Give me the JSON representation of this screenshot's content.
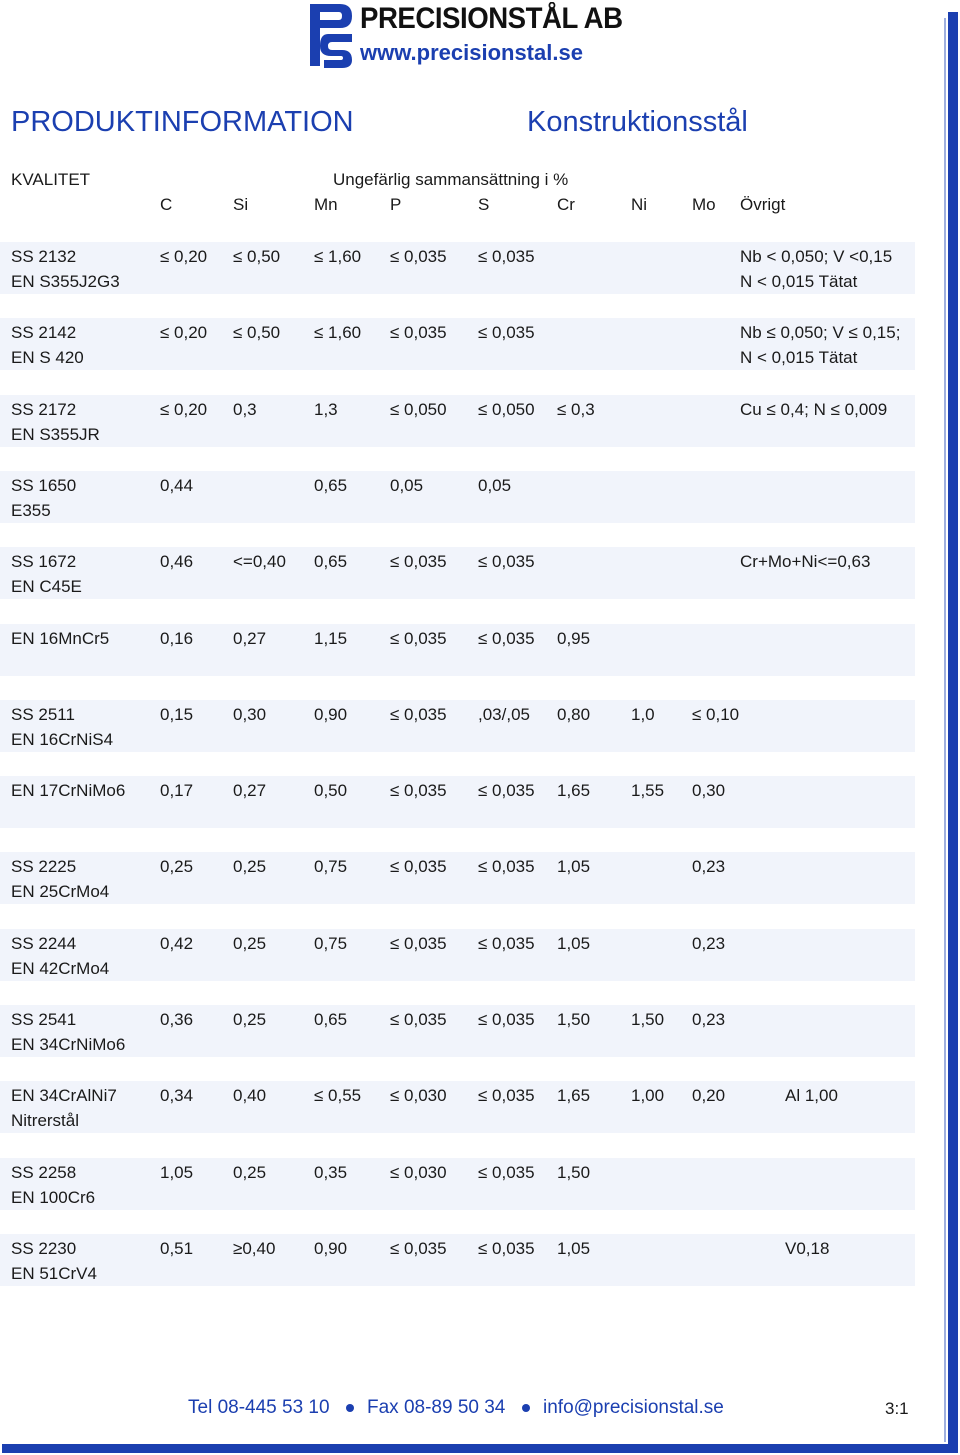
{
  "header": {
    "company": "PRECISIONSTÅL AB",
    "website": "www.precisionstal.se",
    "title_left": "PRODUKTINFORMATION",
    "title_right": "Konstruktionsstål"
  },
  "table": {
    "quality_label": "KVALITET",
    "composition_label": "Ungefärlig sammansättning i %",
    "columns": [
      "C",
      "Si",
      "Mn",
      "P",
      "S",
      "Cr",
      "Ni",
      "Mo",
      "Övrigt"
    ],
    "rows": [
      {
        "g1": "SS 2132",
        "g2": "EN  S355J2G3",
        "c": "≤ 0,20",
        "si": "≤ 0,50",
        "mn": "≤ 1,60",
        "p": "≤ 0,035",
        "s": "≤ 0,035",
        "cr": "",
        "ni": "",
        "mo": "",
        "o1": "Nb < 0,050; V <0,15",
        "o2": "N < 0,015   Tätat"
      },
      {
        "g1": "SS 2142",
        "g2": "EN  S 420",
        "c": "≤ 0,20",
        "si": "≤ 0,50",
        "mn": "≤ 1,60",
        "p": "≤ 0,035",
        "s": "≤ 0,035",
        "cr": "",
        "ni": "",
        "mo": "",
        "o1": "Nb ≤ 0,050; V ≤ 0,15;",
        "o2": "N < 0,015   Tätat"
      },
      {
        "g1": "SS 2172",
        "g2": "EN   S355JR",
        "c": "≤ 0,20",
        "si": "0,3",
        "mn": "1,3",
        "p": "≤ 0,050",
        "s": "≤ 0,050",
        "cr": "≤ 0,3",
        "ni": "",
        "mo": "",
        "o1": "Cu ≤ 0,4; N ≤ 0,009",
        "o2": ""
      },
      {
        "g1": "SS 1650",
        "g2": "E355",
        "c": "0,44",
        "si": "",
        "mn": "0,65",
        "p": "0,05",
        "s": "0,05",
        "cr": "",
        "ni": "",
        "mo": "",
        "o1": "",
        "o2": ""
      },
      {
        "g1": "SS 1672",
        "g2": "EN  C45E",
        "c": "0,46",
        "si": "<=0,40",
        "mn": "0,65",
        "p": "≤ 0,035",
        "s": "≤ 0,035",
        "cr": "",
        "ni": "",
        "mo": "",
        "o1": "Cr+Mo+Ni<=0,63",
        "o2": ""
      },
      {
        "g1": "EN 16MnCr5",
        "g2": "",
        "c": "0,16",
        "si": "0,27",
        "mn": "1,15",
        "p": "≤ 0,035",
        "s": "≤ 0,035",
        "cr": "0,95",
        "ni": "",
        "mo": "",
        "o1": "",
        "o2": ""
      },
      {
        "g1": "SS 2511",
        "g2": "EN 16CrNiS4",
        "c": "0,15",
        "si": "0,30",
        "mn": "0,90",
        "p": "≤ 0,035",
        "s": ",03/,05",
        "cr": "0,80",
        "ni": "1,0",
        "mo": "≤ 0,10",
        "o1": "",
        "o2": ""
      },
      {
        "g1": "EN 17CrNiMo6",
        "g2": "",
        "c": "0,17",
        "si": "0,27",
        "mn": "0,50",
        "p": "≤ 0,035",
        "s": "≤ 0,035",
        "cr": "1,65",
        "ni": "1,55",
        "mo": "0,30",
        "o1": "",
        "o2": ""
      },
      {
        "g1": "SS 2225",
        "g2": "EN 25CrMo4",
        "c": "0,25",
        "si": "0,25",
        "mn": "0,75",
        "p": "≤ 0,035",
        "s": "≤ 0,035",
        "cr": "1,05",
        "ni": "",
        "mo": "0,23",
        "o1": "",
        "o2": ""
      },
      {
        "g1": "SS 2244",
        "g2": "EN 42CrMo4",
        "c": "0,42",
        "si": "0,25",
        "mn": "0,75",
        "p": "≤ 0,035",
        "s": "≤ 0,035",
        "cr": "1,05",
        "ni": "",
        "mo": "0,23",
        "o1": "",
        "o2": ""
      },
      {
        "g1": "SS 2541",
        "g2": "EN 34CrNiMo6",
        "c": "0,36",
        "si": "0,25",
        "mn": "0,65",
        "p": "≤ 0,035",
        "s": "≤ 0,035",
        "cr": "1,50",
        "ni": "1,50",
        "mo": "0,23",
        "o1": "",
        "o2": ""
      },
      {
        "g1": "EN 34CrAlNi7",
        "g2": "Nitrerstål",
        "c": "0,34",
        "si": "0,40",
        "mn": "≤ 0,55",
        "p": "≤ 0,030",
        "s": "≤ 0,035",
        "cr": "1,65",
        "ni": "1,00",
        "mo": "0,20",
        "o1": "Al 1,00",
        "o2": ""
      },
      {
        "g1": "SS 2258",
        "g2": "EN 100Cr6",
        "c": "1,05",
        "si": "0,25",
        "mn": "0,35",
        "p": "≤ 0,030",
        "s": "≤ 0,035",
        "cr": "1,50",
        "ni": "",
        "mo": "",
        "o1": "",
        "o2": ""
      },
      {
        "g1": "SS 2230",
        "g2": "EN 51CrV4",
        "c": "0,51",
        "si": "≥0,40",
        "mn": "0,90",
        "p": "≤ 0,035",
        "s": "≤ 0,035",
        "cr": "1,05",
        "ni": "",
        "mo": "",
        "o1": "V0,18",
        "o2": ""
      }
    ]
  },
  "footer": {
    "tel": "Tel 08-445 53 10",
    "fax": "Fax 08-89 50 34",
    "email": "info@precisionstal.se",
    "page": "3:1"
  },
  "colors": {
    "accent": "#1b3fb0",
    "row_band": "#f1f4fb"
  }
}
